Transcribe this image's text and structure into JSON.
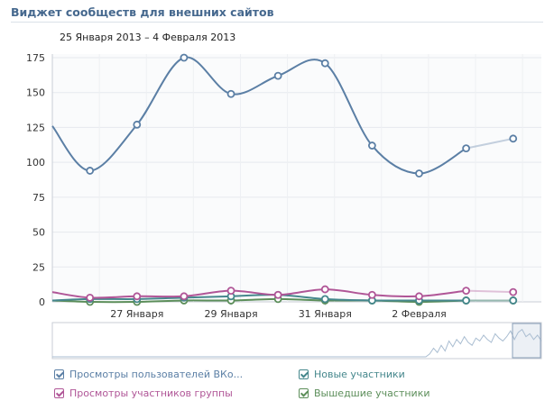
{
  "header": {
    "title": "Виджет сообществ для внешних сайтов",
    "date_range": "25 Января 2013 – 4 Февраля 2013"
  },
  "legend": [
    {
      "label": "Просмотры пользователей ВКо...",
      "color": "#5b7fa5",
      "checked": true
    },
    {
      "label": "Просмотры участников группы",
      "color": "#b05697",
      "checked": true
    },
    {
      "label": "Новые участники",
      "color": "#45878c",
      "checked": true
    },
    {
      "label": "Вышедшие участники",
      "color": "#5c8e5a",
      "checked": true
    }
  ],
  "chart_data": {
    "type": "line",
    "x": [
      0,
      1,
      2,
      3,
      4,
      5,
      6,
      7,
      8,
      9,
      10,
      11,
      12
    ],
    "xtick_labels": [
      {
        "x": 2,
        "label": "27 Января"
      },
      {
        "x": 4,
        "label": "29 Января"
      },
      {
        "x": 6,
        "label": "31 Января"
      },
      {
        "x": 8,
        "label": "2 Февраля"
      }
    ],
    "ylim": [
      0,
      175
    ],
    "yticks": [
      0,
      25,
      50,
      75,
      100,
      125,
      150,
      175
    ],
    "grid": true,
    "series": [
      {
        "name": "Просмотры пользователей ВКо...",
        "color": "#5b7fa5",
        "values": [
          126,
          94,
          127,
          175,
          149,
          162,
          171,
          112,
          92,
          110,
          117
        ],
        "x": [
          0,
          0.8,
          1.8,
          2.8,
          3.8,
          4.8,
          5.8,
          6.8,
          7.8,
          8.8,
          9.8
        ],
        "dashed_from_index": 9
      },
      {
        "name": "Просмотры участников группы",
        "color": "#b05697",
        "values": [
          7,
          3,
          4,
          4,
          8,
          5,
          9,
          5,
          4,
          8,
          7
        ],
        "x": [
          0,
          0.8,
          1.8,
          2.8,
          3.8,
          4.8,
          5.8,
          6.8,
          7.8,
          8.8,
          9.8
        ],
        "dashed_from_index": 9
      },
      {
        "name": "Новые участники",
        "color": "#45878c",
        "values": [
          1,
          2,
          2,
          3,
          4,
          5,
          2,
          1,
          1,
          1,
          1
        ],
        "x": [
          0,
          0.8,
          1.8,
          2.8,
          3.8,
          4.8,
          5.8,
          6.8,
          7.8,
          8.8,
          9.8
        ],
        "dashed_from_index": 9
      },
      {
        "name": "Вышедшие участники",
        "color": "#5c8e5a",
        "values": [
          1,
          0,
          0,
          1,
          1,
          2,
          1,
          1,
          0,
          1,
          1
        ],
        "x": [
          0,
          0.8,
          1.8,
          2.8,
          3.8,
          4.8,
          5.8,
          6.8,
          7.8,
          8.8,
          9.8
        ],
        "dashed_from_index": 9
      }
    ],
    "navigator": {
      "values": [
        0,
        0,
        0,
        0,
        0,
        0,
        0,
        0,
        0,
        0,
        0,
        0,
        0,
        0,
        0,
        0,
        0,
        0,
        0,
        0,
        0,
        0,
        0,
        0,
        0,
        0,
        0,
        0,
        0,
        0,
        0,
        0,
        0,
        0,
        0,
        0,
        0,
        0,
        0,
        0,
        0,
        0,
        0,
        0,
        0,
        0,
        0,
        0,
        0,
        0,
        0,
        0,
        0,
        0,
        0,
        0,
        0,
        0,
        0,
        0,
        0,
        0,
        0,
        0,
        0,
        0,
        0,
        0,
        0,
        0,
        0,
        0,
        0,
        0,
        0,
        0,
        0,
        0,
        0,
        0,
        0,
        0,
        0,
        0,
        0,
        0,
        0,
        0,
        0,
        0,
        0,
        0,
        0,
        0,
        0,
        0,
        0,
        0,
        10,
        30,
        15,
        40,
        20,
        55,
        35,
        60,
        45,
        70,
        50,
        40,
        65,
        55,
        75,
        60,
        50,
        80,
        65,
        55,
        70,
        90,
        60,
        85,
        95,
        70,
        80,
        60,
        75,
        55
      ]
    }
  }
}
